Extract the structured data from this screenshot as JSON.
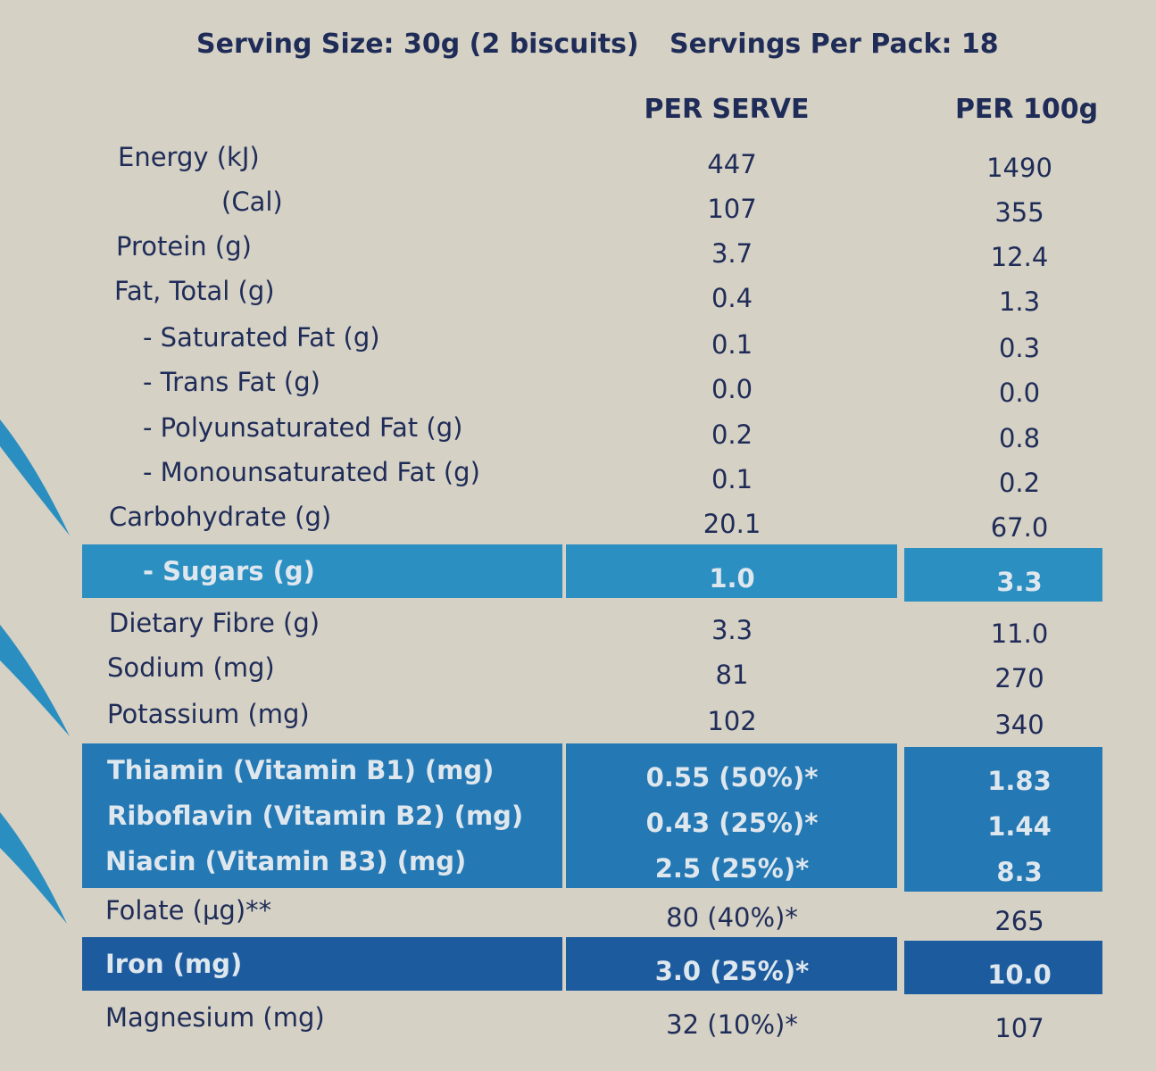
{
  "header": {
    "serving_size": "Serving Size: 30g (2 biscuits)",
    "servings_per_pack": "Servings Per Pack: 18"
  },
  "table": {
    "columns": [
      "PER SERVE",
      "PER 100g"
    ],
    "rows": [
      {
        "label": "Energy (kJ)",
        "per_serve": "447",
        "per_100g": "1490"
      },
      {
        "label": "(Cal)",
        "per_serve": "107",
        "per_100g": "355"
      },
      {
        "label": "Protein (g)",
        "per_serve": "3.7",
        "per_100g": "12.4"
      },
      {
        "label": "Fat, Total (g)",
        "per_serve": "0.4",
        "per_100g": "1.3"
      },
      {
        "label": "- Saturated Fat (g)",
        "per_serve": "0.1",
        "per_100g": "0.3"
      },
      {
        "label": "- Trans Fat (g)",
        "per_serve": "0.0",
        "per_100g": "0.0"
      },
      {
        "label": "- Polyunsaturated Fat (g)",
        "per_serve": "0.2",
        "per_100g": "0.8"
      },
      {
        "label": "- Monounsaturated Fat (g)",
        "per_serve": "0.1",
        "per_100g": "0.2"
      },
      {
        "label": "Carbohydrate (g)",
        "per_serve": "20.1",
        "per_100g": "67.0"
      },
      {
        "label": "- Sugars (g)",
        "per_serve": "1.0",
        "per_100g": "3.3",
        "color": "#2b8fc1"
      },
      {
        "label": "Dietary Fibre (g)",
        "per_serve": "3.3",
        "per_100g": "11.0"
      },
      {
        "label": "Sodium (mg)",
        "per_serve": "81",
        "per_100g": "270"
      },
      {
        "label": "Potassium (mg)",
        "per_serve": "102",
        "per_100g": "340"
      },
      {
        "label": "Thiamin (Vitamin B1) (mg)",
        "per_serve": "0.55 (50%)*",
        "per_100g": "1.83",
        "color": "#2478b3"
      },
      {
        "label": "Riboflavin (Vitamin B2) (mg)",
        "per_serve": "0.43 (25%)*",
        "per_100g": "1.44",
        "color": "#2478b3"
      },
      {
        "label": "Niacin (Vitamin B3) (mg)",
        "per_serve": "2.5 (25%)*",
        "per_100g": "8.3",
        "color": "#2478b3"
      },
      {
        "label": "Folate (µg)**",
        "per_serve": "80 (40%)*",
        "per_100g": "265"
      },
      {
        "label": "Iron (mg)",
        "per_serve": "3.0 (25%)*",
        "per_100g": "10.0",
        "color": "#1c5c9e"
      },
      {
        "label": "Magnesium (mg)",
        "per_serve": "32 (10%)*",
        "per_100g": "107"
      }
    ]
  }
}
